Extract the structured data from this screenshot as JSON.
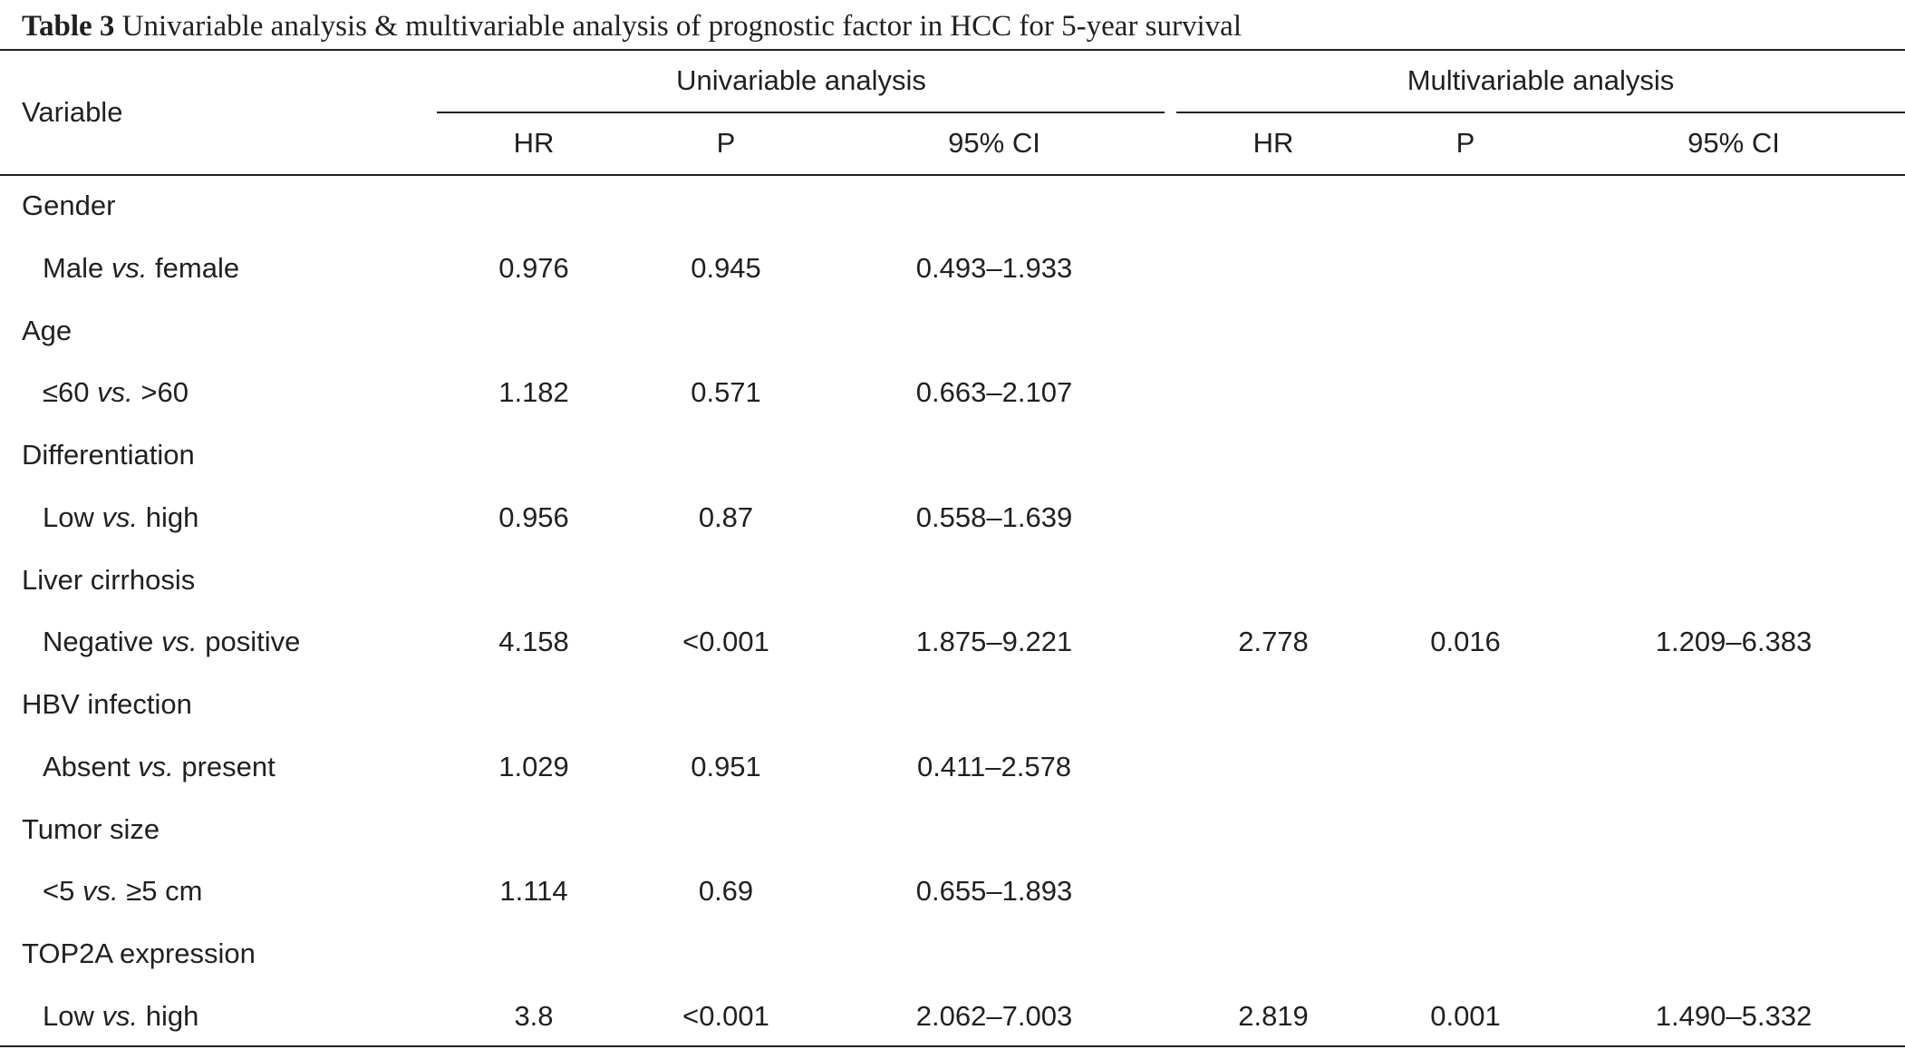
{
  "caption": {
    "label": "Table 3",
    "text": " Univariable analysis & multivariable analysis of prognostic factor in HCC for 5-year survival"
  },
  "header": {
    "variable": "Variable",
    "groups": [
      "Univariable analysis",
      "Multivariable analysis"
    ],
    "columns": [
      "HR",
      "P",
      "95% CI",
      "HR",
      "P",
      "95% CI"
    ]
  },
  "rows": [
    {
      "type": "category",
      "label": "Gender"
    },
    {
      "type": "sub",
      "pre": "Male ",
      "vs": "vs.",
      "post": " female",
      "values": [
        "0.976",
        "0.945",
        "0.493–1.933",
        "",
        "",
        ""
      ]
    },
    {
      "type": "category",
      "label": "Age"
    },
    {
      "type": "sub",
      "pre": "≤60 ",
      "vs": "vs.",
      "post": " >60",
      "values": [
        "1.182",
        "0.571",
        "0.663–2.107",
        "",
        "",
        ""
      ]
    },
    {
      "type": "category",
      "label": "Differentiation"
    },
    {
      "type": "sub",
      "pre": "Low ",
      "vs": "vs.",
      "post": " high",
      "values": [
        "0.956",
        "0.87",
        "0.558–1.639",
        "",
        "",
        ""
      ]
    },
    {
      "type": "category",
      "label": "Liver cirrhosis"
    },
    {
      "type": "sub",
      "pre": "Negative ",
      "vs": "vs.",
      "post": " positive",
      "values": [
        "4.158",
        "<0.001",
        "1.875–9.221",
        "2.778",
        "0.016",
        "1.209–6.383"
      ]
    },
    {
      "type": "category",
      "label": "HBV infection"
    },
    {
      "type": "sub",
      "pre": "Absent ",
      "vs": "vs.",
      "post": " present",
      "values": [
        "1.029",
        "0.951",
        "0.411–2.578",
        "",
        "",
        ""
      ]
    },
    {
      "type": "category",
      "label": "Tumor size"
    },
    {
      "type": "sub",
      "pre": "<5 ",
      "vs": "vs.",
      "post": " ≥5 cm",
      "values": [
        "1.114",
        "0.69",
        "0.655–1.893",
        "",
        "",
        ""
      ]
    },
    {
      "type": "category",
      "label": "TOP2A expression"
    },
    {
      "type": "sub",
      "pre": "Low ",
      "vs": "vs.",
      "post": " high",
      "values": [
        "3.8",
        "<0.001",
        "2.062–7.003",
        "2.819",
        "0.001",
        "1.490–5.332"
      ]
    }
  ]
}
